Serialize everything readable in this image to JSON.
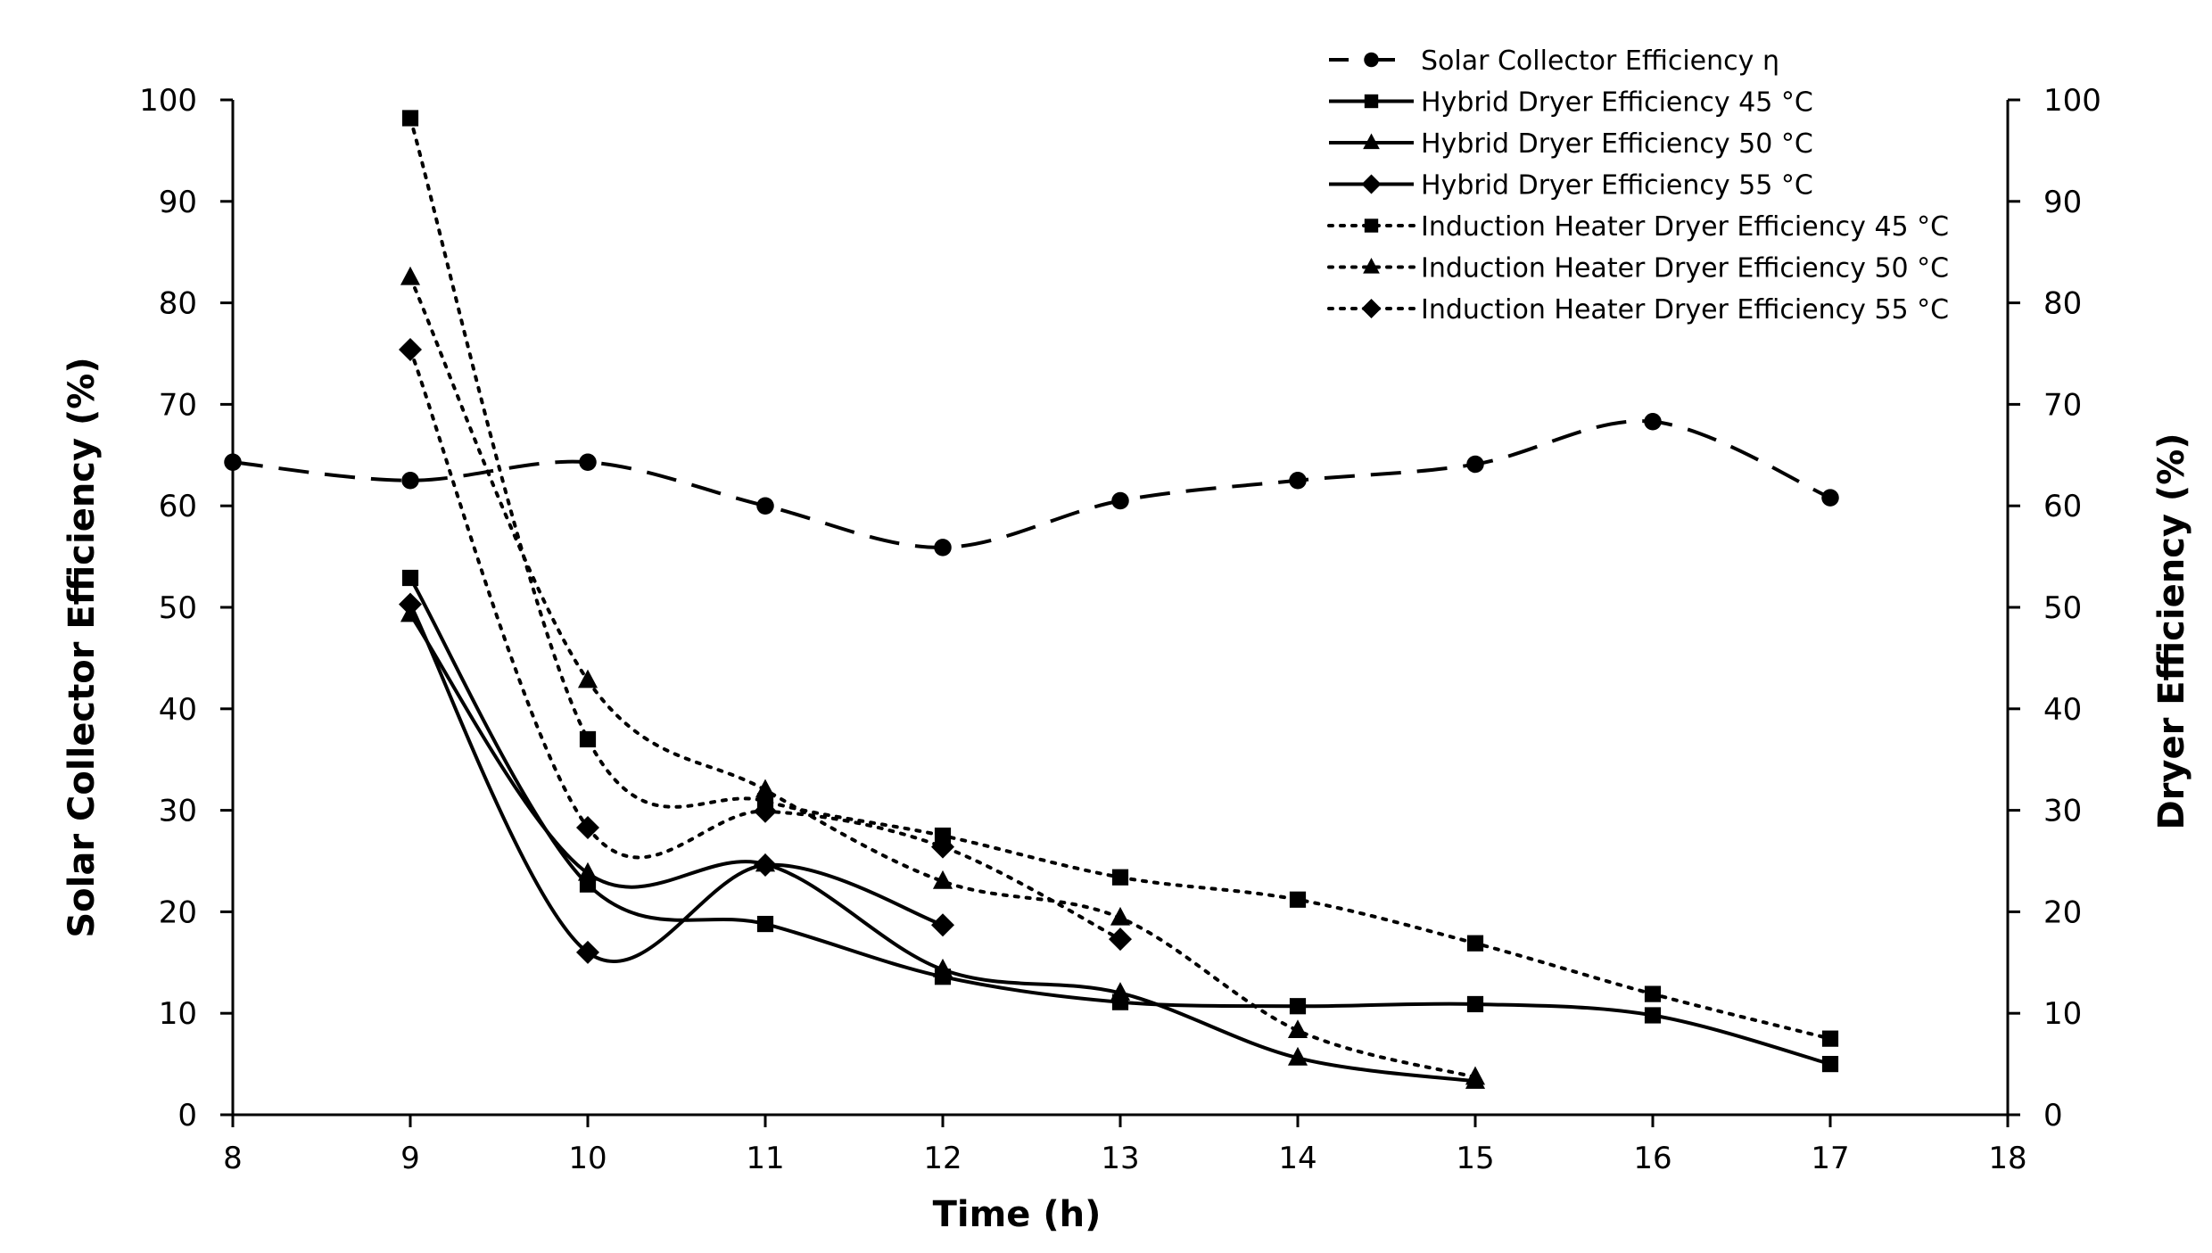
{
  "chart_data": {
    "type": "line",
    "title": "",
    "xlabel": "Time (h)",
    "ylabel": "Solar Collector Efficiency (%)",
    "y2label": "Dryer Efficiency (%)",
    "xlim": [
      8,
      18
    ],
    "ylim": [
      0,
      100
    ],
    "y2lim": [
      0,
      100
    ],
    "xticks": [
      8,
      9,
      10,
      11,
      12,
      13,
      14,
      15,
      16,
      17,
      18
    ],
    "yticks": [
      0,
      10,
      20,
      30,
      40,
      50,
      60,
      70,
      80,
      90,
      100
    ],
    "y2ticks": [
      0,
      10,
      20,
      30,
      40,
      50,
      60,
      70,
      80,
      90,
      100
    ],
    "legend_position": "top-right",
    "series": [
      {
        "name": "Solar Collector Efficiency η",
        "marker": "circle",
        "line": "dashed",
        "axis": "left",
        "x": [
          8,
          9,
          10,
          11,
          12,
          13,
          14,
          15,
          16,
          17
        ],
        "y": [
          64.3,
          62.5,
          64.3,
          60,
          55.9,
          60.5,
          62.5,
          64.1,
          68.3,
          60.8
        ]
      },
      {
        "name": "Hybrid Dryer Efficiency 45 °C",
        "marker": "square",
        "line": "solid",
        "axis": "right",
        "x": [
          9,
          10,
          11,
          12,
          13,
          14,
          15,
          16,
          17
        ],
        "y": [
          52.9,
          22.7,
          18.8,
          13.6,
          11.1,
          10.7,
          10.9,
          9.8,
          5
        ]
      },
      {
        "name": "Hybrid Dryer Efficiency 50 °C",
        "marker": "triangle",
        "line": "solid",
        "axis": "right",
        "x": [
          9,
          10,
          11,
          12,
          13,
          14,
          15
        ],
        "y": [
          49.3,
          23.8,
          24.7,
          14.3,
          12,
          5.6,
          3.3
        ]
      },
      {
        "name": "Hybrid Dryer Efficiency 55 °C",
        "marker": "diamond",
        "line": "solid",
        "axis": "right",
        "x": [
          9,
          10,
          11,
          12
        ],
        "y": [
          50.3,
          16,
          24.6,
          18.7
        ]
      },
      {
        "name": "Induction Heater Dryer Efficiency 45 °C",
        "marker": "square",
        "line": "dotted",
        "axis": "right",
        "x": [
          9,
          10,
          11,
          12,
          13,
          14,
          15,
          16,
          17
        ],
        "y": [
          98.2,
          37,
          30.9,
          27.5,
          23.4,
          21.2,
          16.9,
          11.9,
          7.5
        ]
      },
      {
        "name": "Induction Heater Dryer Efficiency 50 °C",
        "marker": "triangle",
        "line": "dotted",
        "axis": "right",
        "x": [
          9,
          10,
          11,
          12,
          13,
          14,
          15
        ],
        "y": [
          82.5,
          42.8,
          32,
          23,
          19.4,
          8.3,
          3.7
        ]
      },
      {
        "name": "Induction Heater Dryer Efficiency 55 °C",
        "marker": "diamond",
        "line": "dotted",
        "axis": "right",
        "x": [
          9,
          10,
          11,
          12,
          13
        ],
        "y": [
          75.4,
          28.3,
          29.9,
          26.4,
          17.3
        ]
      }
    ]
  }
}
